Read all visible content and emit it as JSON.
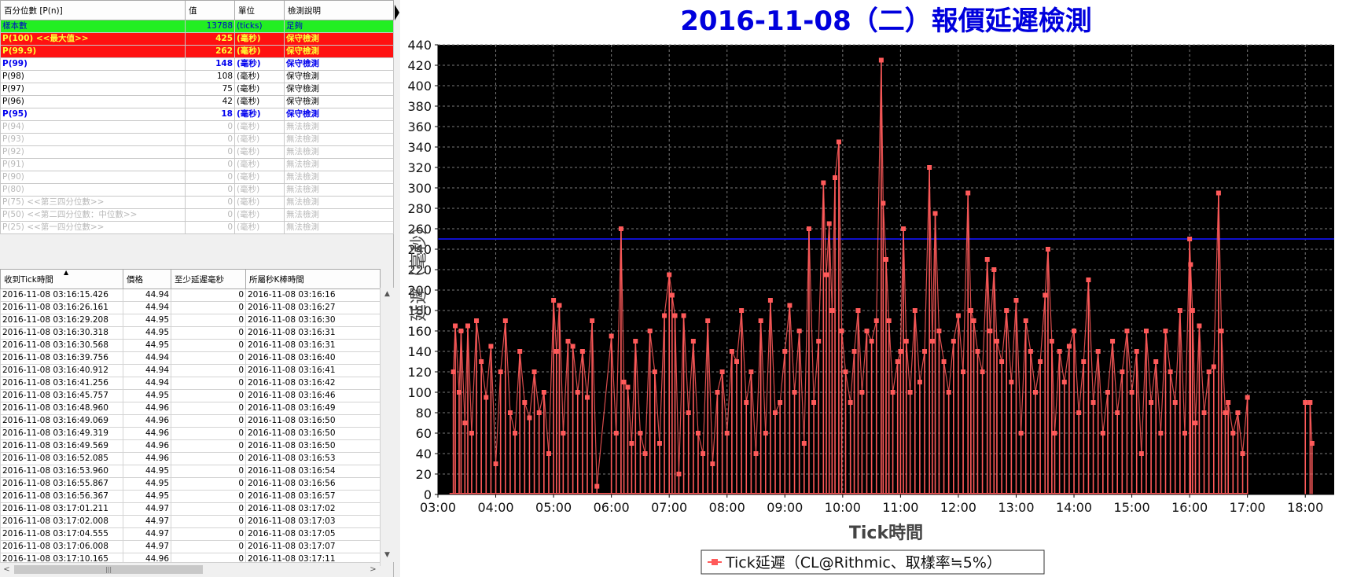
{
  "percentile_table": {
    "headers": [
      "百分位數 [P(n)]",
      "值",
      "單位",
      "檢測說明"
    ],
    "rows": [
      {
        "label": "樣本數",
        "value": "13788",
        "unit": "(ticks)",
        "note": "足夠",
        "style": "green"
      },
      {
        "label": "P(100)  <<最大值>>",
        "value": "425",
        "unit": "(毫秒)",
        "note": "保守檢測",
        "style": "red"
      },
      {
        "label": "P(99.9)",
        "value": "262",
        "unit": "(毫秒)",
        "note": "保守檢測",
        "style": "red"
      },
      {
        "label": "P(99)",
        "value": "148",
        "unit": "(毫秒)",
        "note": "保守檢測",
        "style": "blue"
      },
      {
        "label": "P(98)",
        "value": "108",
        "unit": "(毫秒)",
        "note": "保守檢測",
        "style": "norm"
      },
      {
        "label": "P(97)",
        "value": "75",
        "unit": "(毫秒)",
        "note": "保守檢測",
        "style": "norm"
      },
      {
        "label": "P(96)",
        "value": "42",
        "unit": "(毫秒)",
        "note": "保守檢測",
        "style": "norm"
      },
      {
        "label": "P(95)",
        "value": "18",
        "unit": "(毫秒)",
        "note": "保守檢測",
        "style": "blue"
      },
      {
        "label": "P(94)",
        "value": "0",
        "unit": "(毫秒)",
        "note": "無法檢測",
        "style": "gray"
      },
      {
        "label": "P(93)",
        "value": "0",
        "unit": "(毫秒)",
        "note": "無法檢測",
        "style": "gray"
      },
      {
        "label": "P(92)",
        "value": "0",
        "unit": "(毫秒)",
        "note": "無法檢測",
        "style": "gray"
      },
      {
        "label": "P(91)",
        "value": "0",
        "unit": "(毫秒)",
        "note": "無法檢測",
        "style": "gray"
      },
      {
        "label": "P(90)",
        "value": "0",
        "unit": "(毫秒)",
        "note": "無法檢測",
        "style": "gray"
      },
      {
        "label": "P(80)",
        "value": "0",
        "unit": "(毫秒)",
        "note": "無法檢測",
        "style": "gray"
      },
      {
        "label": "P(75)  <<第三四分位數>>",
        "value": "0",
        "unit": "(毫秒)",
        "note": "無法檢測",
        "style": "gray"
      },
      {
        "label": "P(50)  <<第二四分位數：中位數>>",
        "value": "0",
        "unit": "(毫秒)",
        "note": "無法檢測",
        "style": "gray"
      },
      {
        "label": "P(25)  <<第一四分位數>>",
        "value": "0",
        "unit": "(毫秒)",
        "note": "無法檢測",
        "style": "gray"
      }
    ]
  },
  "tick_table": {
    "headers": [
      "收到Tick時間",
      "價格",
      "至少延遲毫秒",
      "所屬秒K棒時間"
    ],
    "sort_indicator": "▲",
    "rows": [
      [
        "2016-11-08 03:16:15.426",
        "44.94",
        "0",
        "2016-11-08 03:16:16"
      ],
      [
        "2016-11-08 03:16:26.161",
        "44.94",
        "0",
        "2016-11-08 03:16:27"
      ],
      [
        "2016-11-08 03:16:29.208",
        "44.95",
        "0",
        "2016-11-08 03:16:30"
      ],
      [
        "2016-11-08 03:16:30.318",
        "44.95",
        "0",
        "2016-11-08 03:16:31"
      ],
      [
        "2016-11-08 03:16:30.568",
        "44.95",
        "0",
        "2016-11-08 03:16:31"
      ],
      [
        "2016-11-08 03:16:39.756",
        "44.94",
        "0",
        "2016-11-08 03:16:40"
      ],
      [
        "2016-11-08 03:16:40.912",
        "44.94",
        "0",
        "2016-11-08 03:16:41"
      ],
      [
        "2016-11-08 03:16:41.256",
        "44.94",
        "0",
        "2016-11-08 03:16:42"
      ],
      [
        "2016-11-08 03:16:45.757",
        "44.95",
        "0",
        "2016-11-08 03:16:46"
      ],
      [
        "2016-11-08 03:16:48.960",
        "44.96",
        "0",
        "2016-11-08 03:16:49"
      ],
      [
        "2016-11-08 03:16:49.069",
        "44.96",
        "0",
        "2016-11-08 03:16:50"
      ],
      [
        "2016-11-08 03:16:49.319",
        "44.96",
        "0",
        "2016-11-08 03:16:50"
      ],
      [
        "2016-11-08 03:16:49.569",
        "44.96",
        "0",
        "2016-11-08 03:16:50"
      ],
      [
        "2016-11-08 03:16:52.085",
        "44.96",
        "0",
        "2016-11-08 03:16:53"
      ],
      [
        "2016-11-08 03:16:53.960",
        "44.95",
        "0",
        "2016-11-08 03:16:54"
      ],
      [
        "2016-11-08 03:16:55.867",
        "44.95",
        "0",
        "2016-11-08 03:16:56"
      ],
      [
        "2016-11-08 03:16:56.367",
        "44.95",
        "0",
        "2016-11-08 03:16:57"
      ],
      [
        "2016-11-08 03:17:01.211",
        "44.97",
        "0",
        "2016-11-08 03:17:02"
      ],
      [
        "2016-11-08 03:17:02.008",
        "44.97",
        "0",
        "2016-11-08 03:17:03"
      ],
      [
        "2016-11-08 03:17:04.555",
        "44.97",
        "0",
        "2016-11-08 03:17:05"
      ],
      [
        "2016-11-08 03:17:06.008",
        "44.97",
        "0",
        "2016-11-08 03:17:07"
      ],
      [
        "2016-11-08 03:17:10.165",
        "44.96",
        "0",
        "2016-11-08 03:17:11"
      ]
    ]
  },
  "scrollbar": {
    "up": "▲",
    "down": "▼",
    "left": "<",
    "right": ">",
    "grip": "|||"
  },
  "chart_data": {
    "type": "line",
    "title": "2016-11-08（二）報價延遲檢測",
    "xlabel": "Tick時間",
    "ylabel": "延遲（毫秒）",
    "ylim": [
      0,
      440
    ],
    "y_ticks": [
      0,
      20,
      40,
      60,
      80,
      100,
      120,
      140,
      160,
      180,
      200,
      220,
      240,
      260,
      280,
      300,
      320,
      340,
      360,
      380,
      400,
      420,
      440
    ],
    "xlim_hours": [
      3.0,
      18.5
    ],
    "x_ticks": [
      "03:00",
      "04:00",
      "05:00",
      "06:00",
      "07:00",
      "08:00",
      "09:00",
      "10:00",
      "11:00",
      "12:00",
      "13:00",
      "14:00",
      "15:00",
      "16:00",
      "17:00",
      "18:00"
    ],
    "grid": true,
    "legend_position": "bottom-center",
    "reference_line": {
      "value": 250,
      "color": "#1010cc"
    },
    "colors": {
      "plot_bg": "#000000",
      "series": "#ff5a5a",
      "grid": "#7a7a7a",
      "title": "#0000dd"
    },
    "series": [
      {
        "name": "Tick延遲（CL@Rithmic、取樣率≒5%）",
        "points": [
          [
            "03:16",
            120
          ],
          [
            "03:18",
            165
          ],
          [
            "03:22",
            100
          ],
          [
            "03:24",
            160
          ],
          [
            "03:28",
            70
          ],
          [
            "03:31",
            165
          ],
          [
            "03:35",
            60
          ],
          [
            "03:40",
            170
          ],
          [
            "03:45",
            130
          ],
          [
            "03:50",
            95
          ],
          [
            "03:55",
            145
          ],
          [
            "04:00",
            30
          ],
          [
            "04:05",
            120
          ],
          [
            "04:10",
            170
          ],
          [
            "04:15",
            80
          ],
          [
            "04:20",
            60
          ],
          [
            "04:25",
            140
          ],
          [
            "04:30",
            90
          ],
          [
            "04:35",
            75
          ],
          [
            "04:40",
            120
          ],
          [
            "04:45",
            80
          ],
          [
            "04:50",
            100
          ],
          [
            "04:55",
            40
          ],
          [
            "05:00",
            190
          ],
          [
            "05:03",
            140
          ],
          [
            "05:06",
            185
          ],
          [
            "05:10",
            60
          ],
          [
            "05:15",
            150
          ],
          [
            "05:20",
            145
          ],
          [
            "05:25",
            100
          ],
          [
            "05:30",
            140
          ],
          [
            "05:35",
            95
          ],
          [
            "05:40",
            170
          ],
          [
            "05:45",
            8
          ],
          [
            "06:00",
            155
          ],
          [
            "06:05",
            60
          ],
          [
            "06:10",
            260
          ],
          [
            "06:13",
            110
          ],
          [
            "06:17",
            105
          ],
          [
            "06:21",
            50
          ],
          [
            "06:25",
            150
          ],
          [
            "06:30",
            60
          ],
          [
            "06:35",
            40
          ],
          [
            "06:40",
            160
          ],
          [
            "06:45",
            120
          ],
          [
            "06:50",
            50
          ],
          [
            "06:55",
            175
          ],
          [
            "07:00",
            215
          ],
          [
            "07:03",
            195
          ],
          [
            "07:06",
            175
          ],
          [
            "07:10",
            20
          ],
          [
            "07:15",
            175
          ],
          [
            "07:20",
            80
          ],
          [
            "07:25",
            150
          ],
          [
            "07:30",
            60
          ],
          [
            "07:35",
            40
          ],
          [
            "07:40",
            170
          ],
          [
            "07:45",
            30
          ],
          [
            "07:50",
            100
          ],
          [
            "07:55",
            120
          ],
          [
            "08:00",
            60
          ],
          [
            "08:05",
            140
          ],
          [
            "08:10",
            130
          ],
          [
            "08:15",
            180
          ],
          [
            "08:20",
            90
          ],
          [
            "08:25",
            120
          ],
          [
            "08:30",
            40
          ],
          [
            "08:35",
            170
          ],
          [
            "08:40",
            60
          ],
          [
            "08:45",
            190
          ],
          [
            "08:50",
            80
          ],
          [
            "08:55",
            90
          ],
          [
            "09:00",
            140
          ],
          [
            "09:05",
            185
          ],
          [
            "09:10",
            100
          ],
          [
            "09:15",
            160
          ],
          [
            "09:20",
            50
          ],
          [
            "09:25",
            260
          ],
          [
            "09:30",
            90
          ],
          [
            "09:35",
            150
          ],
          [
            "09:40",
            305
          ],
          [
            "09:43",
            215
          ],
          [
            "09:46",
            265
          ],
          [
            "09:49",
            180
          ],
          [
            "09:52",
            310
          ],
          [
            "09:56",
            345
          ],
          [
            "09:59",
            160
          ],
          [
            "10:03",
            120
          ],
          [
            "10:08",
            90
          ],
          [
            "10:12",
            140
          ],
          [
            "10:16",
            180
          ],
          [
            "10:20",
            100
          ],
          [
            "10:25",
            160
          ],
          [
            "10:30",
            150
          ],
          [
            "10:35",
            170
          ],
          [
            "10:40",
            425
          ],
          [
            "10:42",
            285
          ],
          [
            "10:45",
            230
          ],
          [
            "10:48",
            170
          ],
          [
            "10:52",
            100
          ],
          [
            "10:57",
            130
          ],
          [
            "11:00",
            140
          ],
          [
            "11:03",
            260
          ],
          [
            "11:06",
            150
          ],
          [
            "11:10",
            100
          ],
          [
            "11:15",
            180
          ],
          [
            "11:20",
            110
          ],
          [
            "11:25",
            140
          ],
          [
            "11:30",
            320
          ],
          [
            "11:33",
            150
          ],
          [
            "11:36",
            275
          ],
          [
            "11:40",
            160
          ],
          [
            "11:45",
            130
          ],
          [
            "11:50",
            100
          ],
          [
            "11:55",
            150
          ],
          [
            "12:00",
            175
          ],
          [
            "12:05",
            120
          ],
          [
            "12:10",
            295
          ],
          [
            "12:13",
            180
          ],
          [
            "12:16",
            170
          ],
          [
            "12:20",
            140
          ],
          [
            "12:25",
            120
          ],
          [
            "12:30",
            230
          ],
          [
            "12:33",
            160
          ],
          [
            "12:37",
            220
          ],
          [
            "12:40",
            150
          ],
          [
            "12:45",
            130
          ],
          [
            "12:50",
            180
          ],
          [
            "12:55",
            110
          ],
          [
            "13:00",
            190
          ],
          [
            "13:05",
            60
          ],
          [
            "13:10",
            170
          ],
          [
            "13:15",
            140
          ],
          [
            "13:20",
            100
          ],
          [
            "13:25",
            130
          ],
          [
            "13:30",
            195
          ],
          [
            "13:33",
            240
          ],
          [
            "13:37",
            150
          ],
          [
            "13:40",
            60
          ],
          [
            "13:45",
            140
          ],
          [
            "13:50",
            110
          ],
          [
            "13:55",
            145
          ],
          [
            "14:00",
            160
          ],
          [
            "14:05",
            80
          ],
          [
            "14:10",
            130
          ],
          [
            "14:15",
            210
          ],
          [
            "14:20",
            90
          ],
          [
            "14:25",
            140
          ],
          [
            "14:30",
            60
          ],
          [
            "14:35",
            100
          ],
          [
            "14:40",
            150
          ],
          [
            "14:45",
            80
          ],
          [
            "14:50",
            120
          ],
          [
            "14:55",
            160
          ],
          [
            "15:00",
            100
          ],
          [
            "15:05",
            140
          ],
          [
            "15:10",
            40
          ],
          [
            "15:15",
            160
          ],
          [
            "15:20",
            90
          ],
          [
            "15:25",
            130
          ],
          [
            "15:30",
            60
          ],
          [
            "15:35",
            160
          ],
          [
            "15:40",
            120
          ],
          [
            "15:45",
            90
          ],
          [
            "15:50",
            180
          ],
          [
            "15:55",
            60
          ],
          [
            "16:00",
            250
          ],
          [
            "16:01",
            225
          ],
          [
            "16:03",
            180
          ],
          [
            "16:06",
            70
          ],
          [
            "16:10",
            165
          ],
          [
            "16:15",
            80
          ],
          [
            "16:20",
            120
          ],
          [
            "16:25",
            125
          ],
          [
            "16:30",
            295
          ],
          [
            "16:33",
            160
          ],
          [
            "16:37",
            80
          ],
          [
            "16:40",
            90
          ],
          [
            "16:45",
            60
          ],
          [
            "16:50",
            80
          ],
          [
            "16:55",
            40
          ],
          [
            "17:00",
            95
          ],
          [
            "18:00",
            90
          ],
          [
            "18:05",
            90
          ],
          [
            "18:07",
            50
          ]
        ]
      }
    ]
  }
}
